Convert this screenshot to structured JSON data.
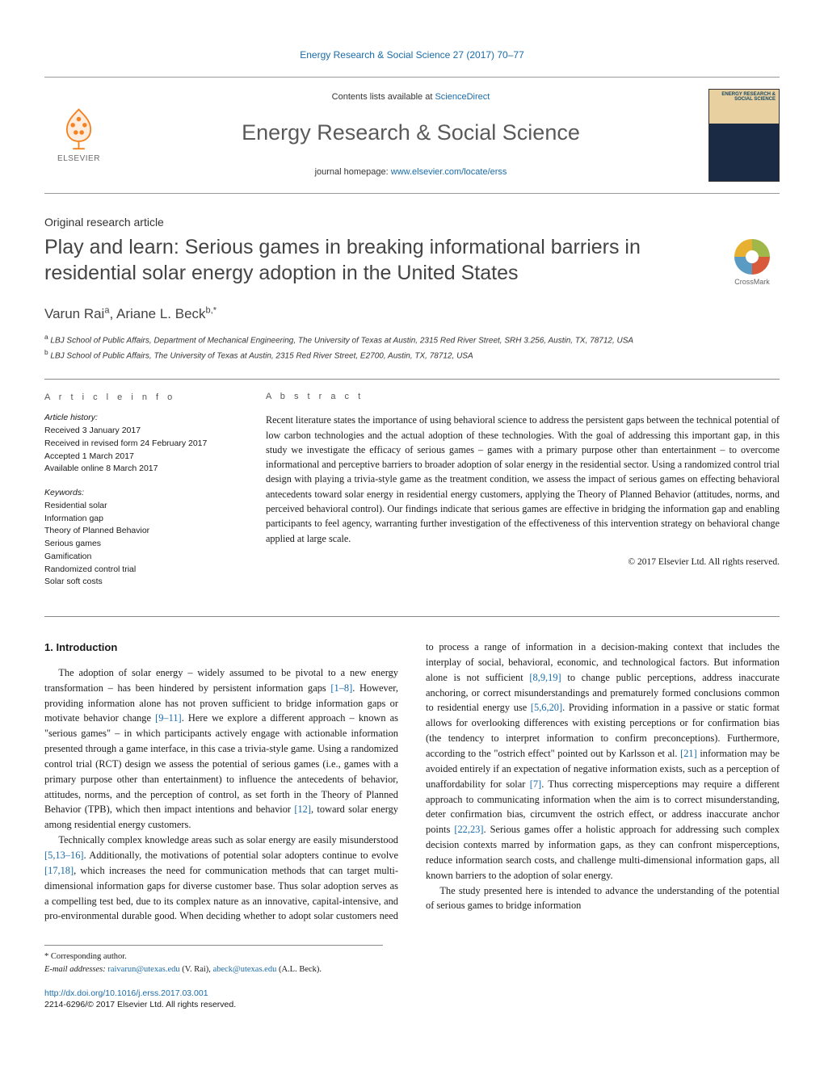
{
  "header": {
    "journal_ref": "Energy Research & Social Science 27 (2017) 70–77",
    "contents_prefix": "Contents lists available at ",
    "contents_link_text": "ScienceDirect",
    "journal_title": "Energy Research & Social Science",
    "homepage_prefix": "journal homepage: ",
    "homepage_url": "www.elsevier.com/locate/erss",
    "publisher_word": "ELSEVIER",
    "cover_title": "ENERGY RESEARCH & SOCIAL SCIENCE"
  },
  "article": {
    "type": "Original research article",
    "title": "Play and learn: Serious games in breaking informational barriers in residential solar energy adoption in the United States",
    "crossmark_label": "CrossMark",
    "authors_html": "Varun Rai<sup>a</sup>, Ariane L. Beck<sup>b,*</sup>",
    "affiliations": [
      "a LBJ School of Public Affairs, Department of Mechanical Engineering, The University of Texas at Austin, 2315 Red River Street, SRH 3.256, Austin, TX, 78712, USA",
      "b LBJ School of Public Affairs, The University of Texas at Austin, 2315 Red River Street, E2700, Austin, TX, 78712, USA"
    ]
  },
  "info": {
    "heading": "a r t i c l e  i n f o",
    "history_label": "Article history:",
    "history": [
      "Received 3 January 2017",
      "Received in revised form 24 February 2017",
      "Accepted 1 March 2017",
      "Available online 8 March 2017"
    ],
    "keywords_label": "Keywords:",
    "keywords": [
      "Residential solar",
      "Information gap",
      "Theory of Planned Behavior",
      "Serious games",
      "Gamification",
      "Randomized control trial",
      "Solar soft costs"
    ]
  },
  "abstract": {
    "heading": "a b s t r a c t",
    "body": "Recent literature states the importance of using behavioral science to address the persistent gaps between the technical potential of low carbon technologies and the actual adoption of these technologies. With the goal of addressing this important gap, in this study we investigate the efficacy of serious games – games with a primary purpose other than entertainment – to overcome informational and perceptive barriers to broader adoption of solar energy in the residential sector. Using a randomized control trial design with playing a trivia-style game as the treatment condition, we assess the impact of serious games on effecting behavioral antecedents toward solar energy in residential energy customers, applying the Theory of Planned Behavior (attitudes, norms, and perceived behavioral control). Our findings indicate that serious games are effective in bridging the information gap and enabling participants to feel agency, warranting further investigation of the effectiveness of this intervention strategy on behavioral change applied at large scale.",
    "copyright": "© 2017 Elsevier Ltd. All rights reserved."
  },
  "body": {
    "section_number": "1.",
    "section_title": "Introduction",
    "p1_a": "The adoption of solar energy – widely assumed to be pivotal to a new energy transformation – has been hindered by persistent information gaps ",
    "p1_cite1": "[1–8]",
    "p1_b": ". However, providing information alone has not proven sufficient to bridge information gaps or motivate behavior change ",
    "p1_cite2": "[9–11]",
    "p1_c": ". Here we explore a different approach – known as \"serious games\" – in which participants actively engage with actionable information presented through a game interface, in this case a trivia-style game. Using a randomized control trial (RCT) design we assess the potential of serious games (i.e., games with a primary purpose other than entertainment) to influence the antecedents of behavior, attitudes, norms, and the perception of control, as set forth in the Theory of Planned Behavior (TPB), which then impact intentions and behavior ",
    "p1_cite3": "[12]",
    "p1_d": ", toward solar energy among residential energy customers.",
    "p2_a": "Technically complex knowledge areas such as solar energy are easily misunderstood ",
    "p2_cite1": "[5,13–16]",
    "p2_b": ". Additionally, the motivations of potential solar adopters continue to evolve ",
    "p2_cite2": "[17,18]",
    "p2_c": ", which increases the need for communication methods that can target multi-dimensional information gaps for diverse customer base. Thus solar adoption serves as a compelling test bed, due to its complex nature as an innovative, capital-intensive, and pro-environmental durable good. When deciding whether to adopt solar customers need to process a range of information in a decision-making context that includes the interplay of social, behavioral, economic, and technological factors. But information alone is not sufficient ",
    "p2_cite3": "[8,9,19]",
    "p2_d": " to change public perceptions, address inaccurate anchoring, or correct misunderstandings and prematurely formed conclusions common to residential energy use ",
    "p2_cite4": "[5,6,20]",
    "p2_e": ". Providing information in a passive or static format allows for overlooking differences with existing perceptions or for confirmation bias (the tendency to interpret information to confirm preconceptions). Furthermore, according to the \"ostrich effect\" pointed out by Karlsson et al. ",
    "p2_cite5": "[21]",
    "p2_f": " information may be avoided entirely if an expectation of negative information exists, such as a perception of unaffordability for solar ",
    "p2_cite6": "[7]",
    "p2_g": ". Thus correcting misperceptions may require a different approach to communicating information when the aim is to correct misunderstanding, deter confirmation bias, circumvent the ostrich effect, or address inaccurate anchor points ",
    "p2_cite7": "[22,23]",
    "p2_h": ". Serious games offer a holistic approach for addressing such complex decision contexts marred by information gaps, as they can confront misperceptions, reduce information search costs, and challenge multi-dimensional information gaps, all known barriers to the adoption of solar energy.",
    "p3": "The study presented here is intended to advance the understanding of the potential of serious games to bridge information"
  },
  "footnotes": {
    "corresponding": "* Corresponding author.",
    "email_label": "E-mail addresses: ",
    "email1": "raivarun@utexas.edu",
    "email1_who": " (V. Rai), ",
    "email2": "abeck@utexas.edu",
    "email2_who": " (A.L. Beck).",
    "doi": "http://dx.doi.org/10.1016/j.erss.2017.03.001",
    "issn_line": "2214-6296/© 2017 Elsevier Ltd. All rights reserved."
  },
  "colors": {
    "link": "#1a6ba8",
    "orange": "#f58220",
    "text": "#1a1a1a",
    "gray": "#5a5a5a"
  }
}
